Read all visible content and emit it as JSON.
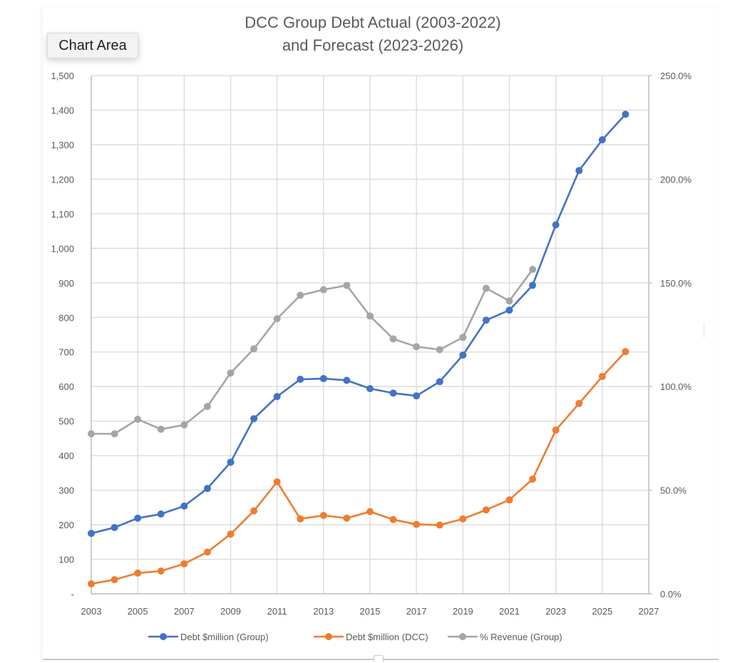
{
  "tooltip": {
    "label": "Chart Area"
  },
  "chart_data": {
    "type": "line",
    "title": [
      "DCC Group Debt Actual (2003-2022)",
      "and Forecast (2023-2026)"
    ],
    "xlabel": "",
    "ylabel": "",
    "y2label": "",
    "x": [
      2003,
      2004,
      2005,
      2006,
      2007,
      2008,
      2009,
      2010,
      2011,
      2012,
      2013,
      2014,
      2015,
      2016,
      2017,
      2018,
      2019,
      2020,
      2021,
      2022,
      2023,
      2024,
      2025,
      2026
    ],
    "xlim": [
      2003,
      2027
    ],
    "x_ticks": [
      "2003",
      "2005",
      "2007",
      "2009",
      "2011",
      "2013",
      "2015",
      "2017",
      "2019",
      "2021",
      "2023",
      "2025",
      "2027"
    ],
    "ylim": [
      0,
      1500
    ],
    "y_ticks": [
      "-",
      "100",
      "200",
      "300",
      "400",
      "500",
      "600",
      "700",
      "800",
      "900",
      "1,000",
      "1,100",
      "1,200",
      "1,300",
      "1,400",
      "1,500"
    ],
    "y2lim": [
      0,
      250
    ],
    "y2_ticks": [
      "0.0%",
      "50.0%",
      "100.0%",
      "150.0%",
      "200.0%",
      "250.0%"
    ],
    "grid": true,
    "legend_position": "bottom",
    "series": [
      {
        "name": "Debt $million (Group)",
        "axis": "left",
        "color": "#4472C4",
        "values": [
          175,
          192,
          219,
          231,
          254,
          305,
          381,
          507,
          571,
          621,
          623,
          618,
          594,
          581,
          573,
          614,
          691,
          792,
          821,
          893,
          1068,
          1225,
          1314,
          1388
        ]
      },
      {
        "name": "Debt $million (DCC)",
        "axis": "left",
        "color": "#ED7D31",
        "values": [
          29,
          41,
          60,
          66,
          87,
          121,
          173,
          240,
          324,
          217,
          227,
          219,
          238,
          215,
          201,
          199,
          217,
          243,
          272,
          332,
          474,
          551,
          629,
          701
        ]
      },
      {
        "name": "% Revenue (Group)",
        "axis": "right",
        "color": "#A5A5A5",
        "values": [
          77.2,
          77.2,
          84.2,
          79.4,
          81.5,
          90.4,
          106.5,
          118.2,
          132.7,
          144.0,
          146.7,
          148.8,
          134.0,
          123.0,
          119.2,
          117.8,
          123.7,
          147.4,
          141.3,
          156.5,
          null,
          null,
          null,
          null
        ]
      }
    ]
  }
}
